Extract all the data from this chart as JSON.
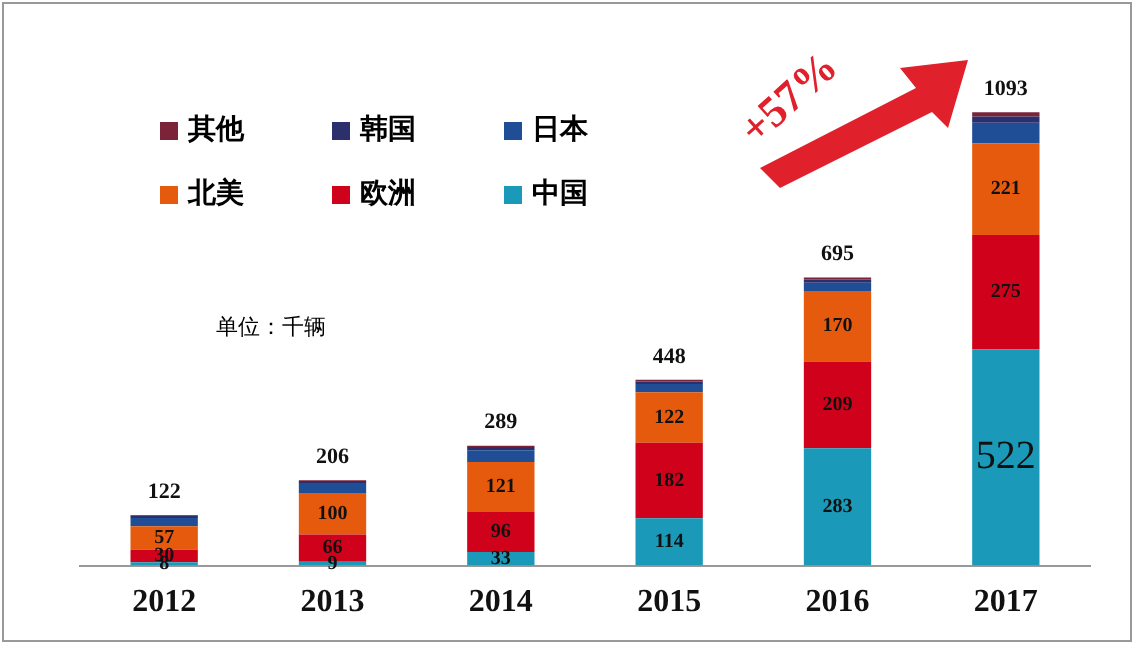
{
  "chart_data": {
    "type": "bar",
    "stacked": true,
    "categories": [
      "2012",
      "2013",
      "2014",
      "2015",
      "2016",
      "2017"
    ],
    "series": [
      {
        "name": "中国",
        "color": "#1a9ab8",
        "values": [
          8,
          9,
          33,
          114,
          283,
          522
        ],
        "value_labels": [
          "8",
          "9",
          "33",
          "114",
          "283",
          "522"
        ]
      },
      {
        "name": "欧洲",
        "color": "#d0021b",
        "values": [
          30,
          66,
          96,
          182,
          209,
          275
        ],
        "value_labels": [
          "30",
          "66",
          "96",
          "182",
          "209",
          "275"
        ]
      },
      {
        "name": "北美",
        "color": "#e55a0c",
        "values": [
          57,
          100,
          121,
          122,
          170,
          221
        ],
        "value_labels": [
          "57",
          "100",
          "121",
          "122",
          "170",
          "221"
        ]
      },
      {
        "name": "日本",
        "color": "#1f4e96",
        "values": [
          20,
          24,
          28,
          20,
          20,
          50
        ]
      },
      {
        "name": "韩国",
        "color": "#2b2f6b",
        "values": [
          5,
          5,
          8,
          6,
          8,
          15
        ]
      },
      {
        "name": "其他",
        "color": "#7b2338",
        "values": [
          2,
          2,
          3,
          4,
          5,
          10
        ]
      }
    ],
    "totals": [
      "122",
      "206",
      "289",
      "448",
      "695",
      "1093"
    ],
    "legend": "top left",
    "grid": false,
    "annotations": [
      "单位：千辆",
      "+57%"
    ]
  }
}
